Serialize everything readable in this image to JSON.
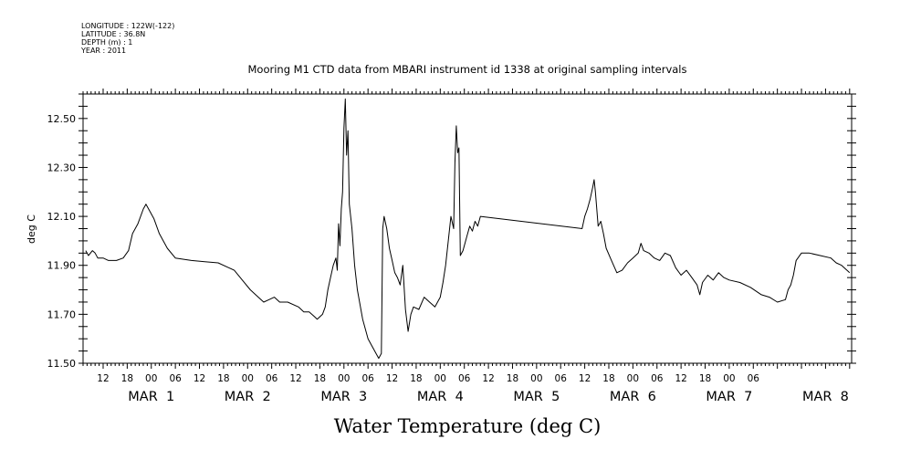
{
  "header": {
    "longitude": "LONGITUDE : 122W(-122)",
    "latitude": "LATITUDE : 36.8N",
    "depth": "DEPTH (m) : 1",
    "year": "YEAR : 2011"
  },
  "chart_data": {
    "type": "line",
    "title": "Mooring M1 CTD data from MBARI instrument id 1338 at original sampling intervals",
    "xlabel": "Water Temperature (deg C)",
    "ylabel": "deg C",
    "ylim": [
      11.5,
      12.6
    ],
    "xlim": [
      "2011-02-28 07:00",
      "2011-03-08 06:30"
    ],
    "y_ticks": [
      "11.50",
      "11.70",
      "11.90",
      "12.10",
      "12.30",
      "12.50"
    ],
    "x_hour_ticks": [
      {
        "t": "2011-02-28 12:00",
        "label": "12"
      },
      {
        "t": "2011-02-28 18:00",
        "label": "18"
      },
      {
        "t": "2011-03-01 00:00",
        "label": "00"
      },
      {
        "t": "2011-03-01 06:00",
        "label": "06"
      },
      {
        "t": "2011-03-01 12:00",
        "label": "12"
      },
      {
        "t": "2011-03-01 18:00",
        "label": "18"
      },
      {
        "t": "2011-03-02 00:00",
        "label": "00"
      },
      {
        "t": "2011-03-02 06:00",
        "label": "06"
      },
      {
        "t": "2011-03-02 12:00",
        "label": "12"
      },
      {
        "t": "2011-03-02 18:00",
        "label": "18"
      },
      {
        "t": "2011-03-03 00:00",
        "label": "00"
      },
      {
        "t": "2011-03-03 06:00",
        "label": "06"
      },
      {
        "t": "2011-03-03 12:00",
        "label": "12"
      },
      {
        "t": "2011-03-03 18:00",
        "label": "18"
      },
      {
        "t": "2011-03-04 00:00",
        "label": "00"
      },
      {
        "t": "2011-03-04 06:00",
        "label": "06"
      },
      {
        "t": "2011-03-04 12:00",
        "label": "12"
      },
      {
        "t": "2011-03-04 18:00",
        "label": "18"
      },
      {
        "t": "2011-03-05 00:00",
        "label": "00"
      },
      {
        "t": "2011-03-05 06:00",
        "label": "06"
      },
      {
        "t": "2011-03-05 12:00",
        "label": "12"
      },
      {
        "t": "2011-03-05 18:00",
        "label": "18"
      },
      {
        "t": "2011-03-06 00:00",
        "label": "00"
      },
      {
        "t": "2011-03-06 06:00",
        "label": "06"
      },
      {
        "t": "2011-03-06 12:00",
        "label": "12"
      },
      {
        "t": "2011-03-06 18:00",
        "label": "18"
      },
      {
        "t": "2011-03-07 00:00",
        "label": "00"
      },
      {
        "t": "2011-03-07 06:00",
        "label": "06"
      }
    ],
    "x_day_labels": [
      {
        "t": "2011-03-01 00:00",
        "label": "MAR  1"
      },
      {
        "t": "2011-03-02 00:00",
        "label": "MAR  2"
      },
      {
        "t": "2011-03-03 00:00",
        "label": "MAR  3"
      },
      {
        "t": "2011-03-04 00:00",
        "label": "MAR  4"
      },
      {
        "t": "2011-03-05 00:00",
        "label": "MAR  5"
      },
      {
        "t": "2011-03-06 00:00",
        "label": "MAR  6"
      },
      {
        "t": "2011-03-07 00:00",
        "label": "MAR  7"
      },
      {
        "t": "2011-03-08 00:00",
        "label": "MAR  8"
      }
    ],
    "series": [
      {
        "color": "#000000",
        "points": [
          [
            "2011-02-28 07:40",
            11.96
          ],
          [
            "2011-02-28 08:20",
            11.94
          ],
          [
            "2011-02-28 09:20",
            11.96
          ],
          [
            "2011-02-28 10:00",
            11.95
          ],
          [
            "2011-02-28 10:40",
            11.93
          ],
          [
            "2011-02-28 12:00",
            11.93
          ],
          [
            "2011-02-28 13:20",
            11.92
          ],
          [
            "2011-02-28 15:20",
            11.92
          ],
          [
            "2011-02-28 17:00",
            11.93
          ],
          [
            "2011-02-28 18:20",
            11.96
          ],
          [
            "2011-02-28 19:20",
            12.03
          ],
          [
            "2011-02-28 20:40",
            12.07
          ],
          [
            "2011-02-28 22:00",
            12.13
          ],
          [
            "2011-02-28 22:40",
            12.15
          ],
          [
            "2011-02-28 23:20",
            12.13
          ],
          [
            "2011-03-01 00:40",
            12.09
          ],
          [
            "2011-03-01 02:00",
            12.03
          ],
          [
            "2011-03-01 04:00",
            11.97
          ],
          [
            "2011-03-01 06:00",
            11.93
          ],
          [
            "2011-03-01 10:00",
            11.92
          ],
          [
            "2011-03-01 13:20",
            11.915
          ],
          [
            "2011-03-01 16:40",
            11.91
          ],
          [
            "2011-03-01 19:20",
            11.89
          ],
          [
            "2011-03-01 20:40",
            11.88
          ],
          [
            "2011-03-01 22:40",
            11.84
          ],
          [
            "2011-03-02 00:40",
            11.8
          ],
          [
            "2011-03-02 02:40",
            11.77
          ],
          [
            "2011-03-02 04:00",
            11.75
          ],
          [
            "2011-03-02 05:20",
            11.76
          ],
          [
            "2011-03-02 06:40",
            11.77
          ],
          [
            "2011-03-02 08:00",
            11.75
          ],
          [
            "2011-03-02 10:00",
            11.75
          ],
          [
            "2011-03-02 12:40",
            11.73
          ],
          [
            "2011-03-02 14:00",
            11.71
          ],
          [
            "2011-03-02 15:20",
            11.71
          ],
          [
            "2011-03-02 16:40",
            11.69
          ],
          [
            "2011-03-02 17:20",
            11.68
          ],
          [
            "2011-03-02 18:40",
            11.7
          ],
          [
            "2011-03-02 19:20",
            11.73
          ],
          [
            "2011-03-02 20:00",
            11.8
          ],
          [
            "2011-03-02 20:40",
            11.85
          ],
          [
            "2011-03-02 21:20",
            11.9
          ],
          [
            "2011-03-02 22:00",
            11.93
          ],
          [
            "2011-03-02 22:20",
            11.88
          ],
          [
            "2011-03-02 22:40",
            12.07
          ],
          [
            "2011-03-02 23:00",
            11.98
          ],
          [
            "2011-03-02 23:20",
            12.13
          ],
          [
            "2011-03-02 23:40",
            12.2
          ],
          [
            "2011-03-03 00:00",
            12.46
          ],
          [
            "2011-03-03 00:20",
            12.58
          ],
          [
            "2011-03-03 00:40",
            12.35
          ],
          [
            "2011-03-03 01:00",
            12.45
          ],
          [
            "2011-03-03 01:20",
            12.15
          ],
          [
            "2011-03-03 02:00",
            12.05
          ],
          [
            "2011-03-03 02:40",
            11.9
          ],
          [
            "2011-03-03 03:20",
            11.8
          ],
          [
            "2011-03-03 04:40",
            11.68
          ],
          [
            "2011-03-03 06:00",
            11.6
          ],
          [
            "2011-03-03 07:20",
            11.56
          ],
          [
            "2011-03-03 08:40",
            11.52
          ],
          [
            "2011-03-03 09:20",
            11.54
          ],
          [
            "2011-03-03 09:40",
            12.05
          ],
          [
            "2011-03-03 10:00",
            12.1
          ],
          [
            "2011-03-03 10:40",
            12.05
          ],
          [
            "2011-03-03 11:20",
            11.97
          ],
          [
            "2011-03-03 12:00",
            11.92
          ],
          [
            "2011-03-03 12:40",
            11.87
          ],
          [
            "2011-03-03 13:20",
            11.85
          ],
          [
            "2011-03-03 14:00",
            11.82
          ],
          [
            "2011-03-03 14:40",
            11.9
          ],
          [
            "2011-03-03 15:20",
            11.72
          ],
          [
            "2011-03-03 16:00",
            11.63
          ],
          [
            "2011-03-03 16:40",
            11.7
          ],
          [
            "2011-03-03 17:20",
            11.73
          ],
          [
            "2011-03-03 18:40",
            11.72
          ],
          [
            "2011-03-03 20:00",
            11.77
          ],
          [
            "2011-03-03 21:20",
            11.75
          ],
          [
            "2011-03-03 22:40",
            11.73
          ],
          [
            "2011-03-04 00:00",
            11.77
          ],
          [
            "2011-03-04 00:40",
            11.83
          ],
          [
            "2011-03-04 01:20",
            11.9
          ],
          [
            "2011-03-04 02:00",
            12.0
          ],
          [
            "2011-03-04 02:40",
            12.1
          ],
          [
            "2011-03-04 03:20",
            12.05
          ],
          [
            "2011-03-04 03:40",
            12.32
          ],
          [
            "2011-03-04 04:00",
            12.47
          ],
          [
            "2011-03-04 04:20",
            12.36
          ],
          [
            "2011-03-04 04:40",
            12.38
          ],
          [
            "2011-03-04 05:00",
            11.94
          ],
          [
            "2011-03-04 05:40",
            11.96
          ],
          [
            "2011-03-04 06:40",
            12.02
          ],
          [
            "2011-03-04 07:20",
            12.06
          ],
          [
            "2011-03-04 08:00",
            12.04
          ],
          [
            "2011-03-04 08:40",
            12.08
          ],
          [
            "2011-03-04 09:20",
            12.06
          ],
          [
            "2011-03-04 10:00",
            12.1
          ],
          [
            "2011-03-05 11:20",
            12.05
          ],
          [
            "2011-03-05 12:00",
            12.1
          ],
          [
            "2011-03-05 12:40",
            12.13
          ],
          [
            "2011-03-05 13:20",
            12.17
          ],
          [
            "2011-03-05 14:00",
            12.22
          ],
          [
            "2011-03-05 14:20",
            12.25
          ],
          [
            "2011-03-05 14:40",
            12.2
          ],
          [
            "2011-03-05 15:00",
            12.13
          ],
          [
            "2011-03-05 15:20",
            12.06
          ],
          [
            "2011-03-05 16:00",
            12.08
          ],
          [
            "2011-03-05 16:40",
            12.03
          ],
          [
            "2011-03-05 17:20",
            11.97
          ],
          [
            "2011-03-05 18:40",
            11.92
          ],
          [
            "2011-03-05 20:00",
            11.87
          ],
          [
            "2011-03-05 21:20",
            11.88
          ],
          [
            "2011-03-05 22:40",
            11.91
          ],
          [
            "2011-03-06 00:00",
            11.93
          ],
          [
            "2011-03-06 01:20",
            11.95
          ],
          [
            "2011-03-06 02:00",
            11.99
          ],
          [
            "2011-03-06 02:40",
            11.96
          ],
          [
            "2011-03-06 04:00",
            11.95
          ],
          [
            "2011-03-06 05:20",
            11.93
          ],
          [
            "2011-03-06 06:40",
            11.92
          ],
          [
            "2011-03-06 08:00",
            11.95
          ],
          [
            "2011-03-06 09:20",
            11.94
          ],
          [
            "2011-03-06 10:40",
            11.89
          ],
          [
            "2011-03-06 12:00",
            11.86
          ],
          [
            "2011-03-06 13:20",
            11.88
          ],
          [
            "2011-03-06 14:40",
            11.85
          ],
          [
            "2011-03-06 16:00",
            11.82
          ],
          [
            "2011-03-06 16:40",
            11.78
          ],
          [
            "2011-03-06 17:20",
            11.83
          ],
          [
            "2011-03-06 18:40",
            11.86
          ],
          [
            "2011-03-06 20:00",
            11.84
          ],
          [
            "2011-03-06 21:20",
            11.87
          ],
          [
            "2011-03-06 22:40",
            11.85
          ],
          [
            "2011-03-07 00:00",
            11.84
          ],
          [
            "2011-03-07 02:40",
            11.83
          ],
          [
            "2011-03-07 05:20",
            11.81
          ],
          [
            "2011-03-07 08:00",
            11.78
          ],
          [
            "2011-03-07 10:00",
            11.77
          ],
          [
            "2011-03-07 12:00",
            11.75
          ],
          [
            "2011-03-07 14:00",
            11.76
          ],
          [
            "2011-03-07 14:40",
            11.8
          ],
          [
            "2011-03-07 15:20",
            11.82
          ],
          [
            "2011-03-07 16:00",
            11.86
          ],
          [
            "2011-03-07 16:40",
            11.92
          ],
          [
            "2011-03-07 18:00",
            11.95
          ],
          [
            "2011-03-07 20:00",
            11.95
          ],
          [
            "2011-03-07 22:40",
            11.94
          ],
          [
            "2011-03-08 01:20",
            11.93
          ],
          [
            "2011-03-08 02:40",
            11.91
          ],
          [
            "2011-03-08 04:00",
            11.9
          ],
          [
            "2011-03-08 05:20",
            11.88
          ],
          [
            "2011-03-08 06:00",
            11.87
          ]
        ]
      }
    ]
  }
}
